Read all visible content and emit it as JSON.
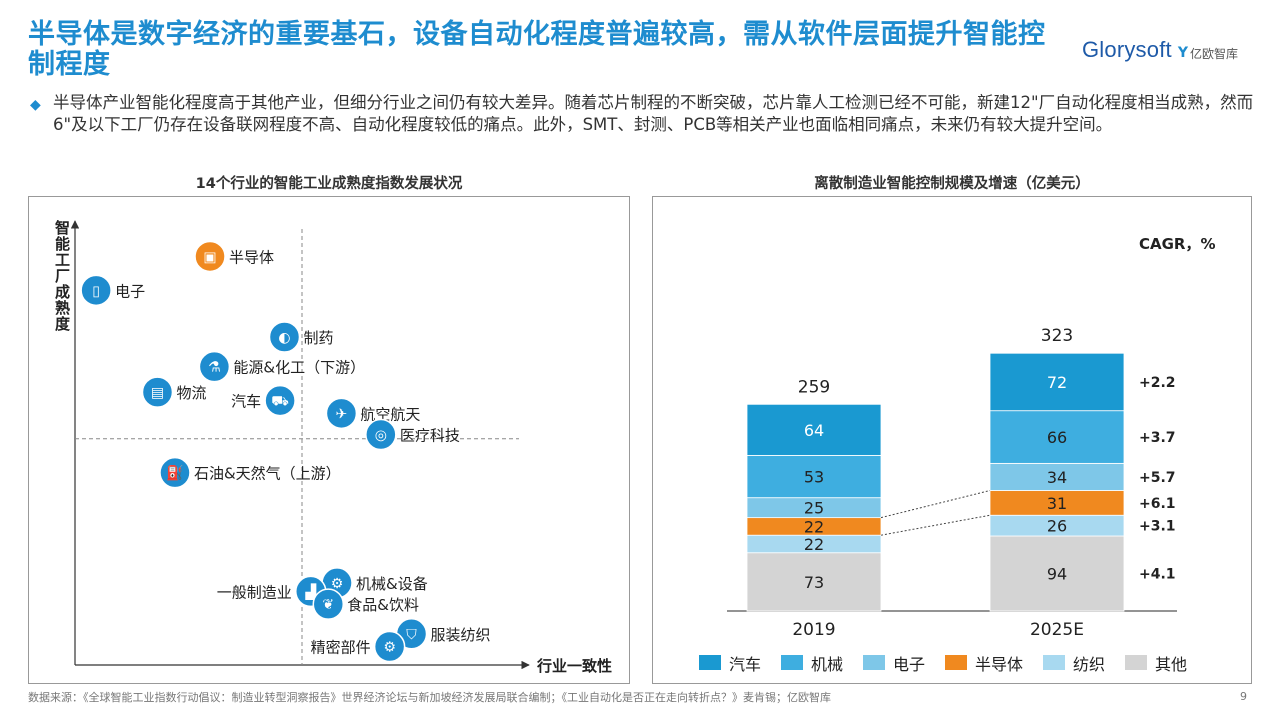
{
  "header": {
    "title": "半导体是数字经济的重要基石，设备自动化程度普遍较高，需从软件层面提升智能控制程度",
    "logo_main": "Glorysoft",
    "logo_sub": "亿欧智库"
  },
  "bullet": {
    "text": "半导体产业智能化程度高于其他产业，但细分行业之间仍有较大差异。随着芯片制程的不断突破，芯片靠人工检测已经不可能，新建12\"厂自动化程度相当成熟，然而6\"及以下工厂仍存在设备联网程度不高、自动化程度较低的痛点。此外，SMT、封测、PCB等相关产业也面临相同痛点，未来仍有较大提升空间。"
  },
  "footer": {
    "source": "数据来源：《全球智能工业指数行动倡议：制造业转型洞察报告》世界经济论坛与新加坡经济发展局联合编制；《工业自动化是否正在走向转折点？》麦肯锡；亿欧智库",
    "page": "9"
  },
  "colors": {
    "accent": "#1e8ccf",
    "highlight": "#f0891f",
    "auto": "#1a99d1",
    "machinery": "#3eaee0",
    "electronics": "#7ec7e8",
    "semiconductor": "#f0891f",
    "textile": "#a8d9f0",
    "other": "#d4d4d4"
  },
  "chart_data": [
    {
      "type": "scatter",
      "title": "14个行业的智能工业成熟度指数发展状况",
      "xlabel": "行业一致性",
      "ylabel": "智能工厂成熟度",
      "points": [
        {
          "label": "半导体",
          "icon": "chip-icon",
          "x": 29,
          "y": 94,
          "highlight": true,
          "label_side": "right"
        },
        {
          "label": "电子",
          "icon": "phone-icon",
          "x": 3,
          "y": 86,
          "label_side": "right"
        },
        {
          "label": "制药",
          "icon": "pill-icon",
          "x": 46,
          "y": 75,
          "label_side": "right"
        },
        {
          "label": "能源&化工（下游）",
          "icon": "flask-icon",
          "x": 30,
          "y": 68,
          "label_side": "right"
        },
        {
          "label": "物流",
          "icon": "box-icon",
          "x": 17,
          "y": 62,
          "label_side": "right"
        },
        {
          "label": "汽车",
          "icon": "car-icon",
          "x": 45,
          "y": 60,
          "label_side": "left"
        },
        {
          "label": "航空航天",
          "icon": "plane-icon",
          "x": 59,
          "y": 57,
          "label_side": "right"
        },
        {
          "label": "医疗科技",
          "icon": "mri-icon",
          "x": 68,
          "y": 52,
          "label_side": "right"
        },
        {
          "label": "石油&天然气（上游）",
          "icon": "oil-pump-icon",
          "x": 21,
          "y": 43,
          "label_side": "right"
        },
        {
          "label": "机械&设备",
          "icon": "robot-arm-icon",
          "x": 58,
          "y": 17,
          "label_side": "right"
        },
        {
          "label": "一般制造业",
          "icon": "factory-icon",
          "x": 52,
          "y": 15,
          "label_side": "left"
        },
        {
          "label": "食品&饮料",
          "icon": "leaf-icon",
          "x": 56,
          "y": 12,
          "label_side": "right"
        },
        {
          "label": "服装纺织",
          "icon": "shirt-icon",
          "x": 75,
          "y": 5,
          "label_side": "right"
        },
        {
          "label": "精密部件",
          "icon": "gear-icon",
          "x": 70,
          "y": 2,
          "label_side": "left"
        }
      ],
      "quadrant_lines": {
        "x": 50,
        "y": 51
      },
      "xlim": [
        0,
        100
      ],
      "ylim": [
        0,
        100
      ]
    },
    {
      "type": "bar",
      "stacked": true,
      "title": "离散制造业智能控制规模及增速（亿美元）",
      "categories": [
        "2019",
        "2025E"
      ],
      "totals": [
        259,
        323
      ],
      "series": [
        {
          "name": "其他",
          "values": [
            73,
            94
          ],
          "cagr": "+4.1",
          "color_key": "other"
        },
        {
          "name": "纺织",
          "values": [
            22,
            26
          ],
          "cagr": "+3.1",
          "color_key": "textile"
        },
        {
          "name": "半导体",
          "values": [
            22,
            31
          ],
          "cagr": "+6.1",
          "color_key": "semiconductor"
        },
        {
          "name": "电子",
          "values": [
            25,
            34
          ],
          "cagr": "+5.7",
          "color_key": "electronics"
        },
        {
          "name": "机械",
          "values": [
            53,
            66
          ],
          "cagr": "+3.7",
          "color_key": "machinery"
        },
        {
          "name": "汽车",
          "values": [
            64,
            72
          ],
          "cagr": "+2.2",
          "color_key": "auto"
        }
      ],
      "cagr_header": "CAGR，%",
      "legend_order": [
        "汽车",
        "机械",
        "电子",
        "半导体",
        "纺织",
        "其他"
      ],
      "legend_position": "bottom",
      "ylim": [
        0,
        323
      ]
    }
  ]
}
